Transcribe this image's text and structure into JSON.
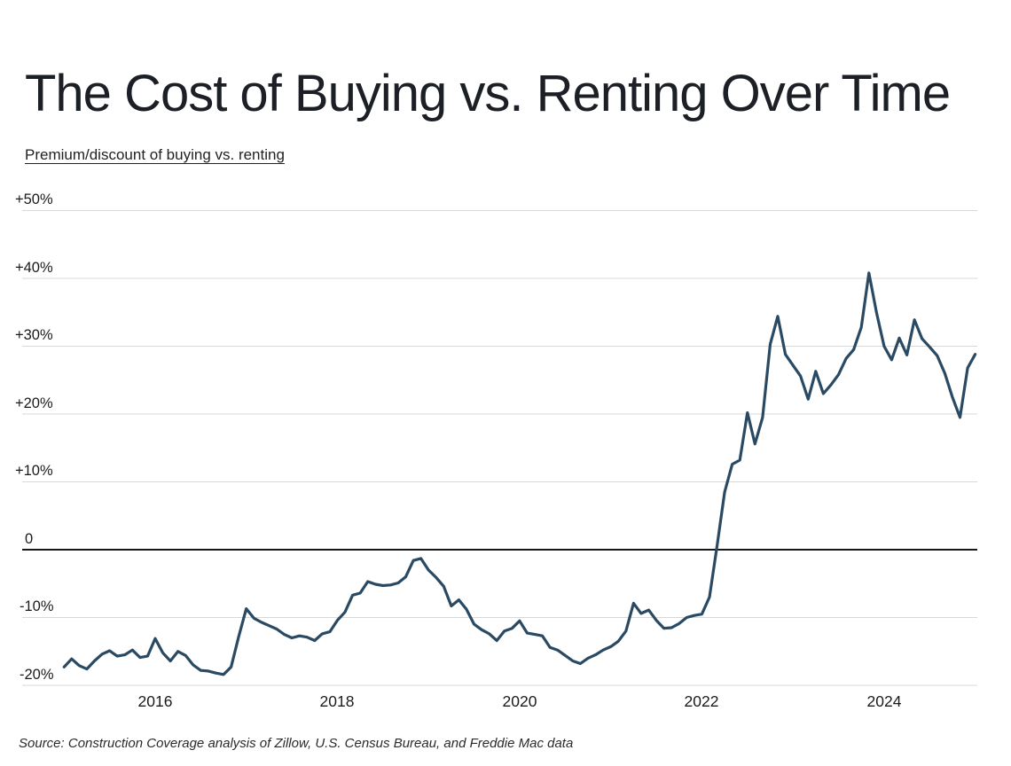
{
  "header": {
    "title": "The Cost of Buying vs. Renting Over Time"
  },
  "footer": {
    "source": "Source: Construction Coverage analysis of Zillow, U.S. Census Bureau, and Freddie Mac data"
  },
  "colors": {
    "line": "#2a4a63",
    "grid": "#d8d8d8",
    "zero_line": "#16181b",
    "text": "#1b1b1b",
    "background": "#ffffff"
  },
  "chart_data": {
    "type": "line",
    "title": "The Cost of Buying vs. Renting Over Time",
    "subtitle": "Premium/discount of buying vs. renting",
    "ylabel": "Premium/discount of buying vs. renting (%)",
    "xlabel": "",
    "x_start_month": "2015-01",
    "x_end_month": "2025-01",
    "x_interval": "monthly",
    "ylim": [
      -22,
      55
    ],
    "grid": "horizontal-only",
    "zero_line": true,
    "legend": "none",
    "y_ticks": [
      {
        "label": "+50%",
        "value": 50
      },
      {
        "label": "+40%",
        "value": 40
      },
      {
        "label": "+30%",
        "value": 30
      },
      {
        "label": "+20%",
        "value": 20
      },
      {
        "label": "+10%",
        "value": 10
      },
      {
        "label": "0",
        "value": 0
      },
      {
        "label": "-10%",
        "value": -10
      },
      {
        "label": "-20%",
        "value": -20
      }
    ],
    "x_ticks": [
      {
        "label": "2016",
        "month_index": 12
      },
      {
        "label": "2018",
        "month_index": 36
      },
      {
        "label": "2020",
        "month_index": 60
      },
      {
        "label": "2022",
        "month_index": 84
      },
      {
        "label": "2024",
        "month_index": 108
      }
    ],
    "series": [
      {
        "name": "Premium/discount of buying vs. renting",
        "unit": "percent",
        "monthly_values": [
          -17.3,
          -16.1,
          -17.1,
          -17.6,
          -16.4,
          -15.4,
          -14.9,
          -15.7,
          -15.5,
          -14.8,
          -15.9,
          -15.7,
          -13.1,
          -15.2,
          -16.4,
          -15.0,
          -15.6,
          -17.0,
          -17.8,
          -17.9,
          -18.2,
          -18.4,
          -17.3,
          -12.8,
          -8.7,
          -10.1,
          -10.7,
          -11.2,
          -11.7,
          -12.5,
          -13.0,
          -12.7,
          -12.9,
          -13.4,
          -12.4,
          -12.1,
          -10.4,
          -9.2,
          -6.7,
          -6.4,
          -4.7,
          -5.1,
          -5.3,
          -5.2,
          -4.9,
          -4.0,
          -1.6,
          -1.3,
          -3.0,
          -4.1,
          -5.4,
          -8.3,
          -7.4,
          -8.8,
          -11.0,
          -11.8,
          -12.4,
          -13.4,
          -12.0,
          -11.6,
          -10.5,
          -12.3,
          -12.5,
          -12.7,
          -14.4,
          -14.8,
          -15.6,
          -16.4,
          -16.8,
          -16.0,
          -15.5,
          -14.8,
          -14.3,
          -13.5,
          -12.0,
          -7.9,
          -9.4,
          -8.9,
          -10.4,
          -11.6,
          -11.5,
          -10.9,
          -10.0,
          -9.7,
          -9.5,
          -7.0,
          0.5,
          8.5,
          12.6,
          13.2,
          20.2,
          15.6,
          19.5,
          30.3,
          34.4,
          28.8,
          27.2,
          25.6,
          22.2,
          26.3,
          23.0,
          24.3,
          25.8,
          28.2,
          29.5,
          32.8,
          40.8,
          35.0,
          30.0,
          28.0,
          31.2,
          28.7,
          33.9,
          31.1,
          29.9,
          28.6,
          26.0,
          22.5,
          19.5,
          26.8,
          28.8
        ]
      }
    ]
  }
}
